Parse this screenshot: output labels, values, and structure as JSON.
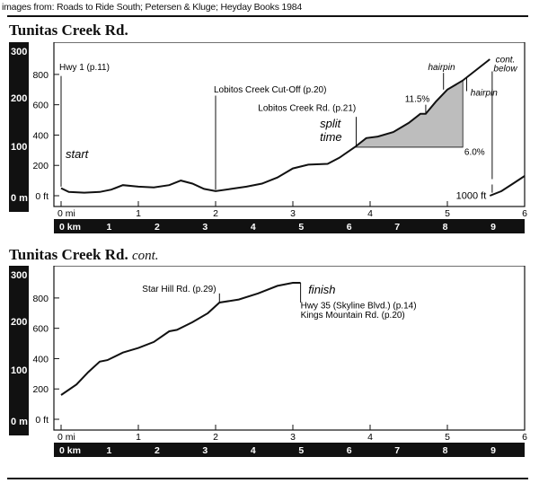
{
  "credit": "images from: Roads to Ride South; Petersen & Kluge; Heyday Books 1984",
  "charts": [
    {
      "title": "Tunitas Creek Rd.",
      "title_suffix": "",
      "feet_ticks": [
        "800",
        "600",
        "400",
        "200",
        "0 ft"
      ],
      "meter_ticks": [
        "300",
        "200",
        "100",
        "0 m"
      ],
      "mile_ticks": [
        "0 mi",
        "1",
        "2",
        "3",
        "4",
        "5",
        "6"
      ],
      "km_ticks": [
        "0 km",
        "1",
        "2",
        "3",
        "4",
        "5",
        "6",
        "7",
        "8",
        "9"
      ],
      "annotations": {
        "hwy1": "Hwy 1 (p.11)",
        "lobitos_cutoff": "Lobitos Creek Cut-Off (p.20)",
        "lobitos_rd": "Lobitos Creek Rd. (p.21)",
        "start": "start",
        "split_time": "split time",
        "hairpin1": "hairpin",
        "hairpin2": "hairpin",
        "grade_steep": "11.5%",
        "grade_avg": "6.0%",
        "cont_below": "cont. below",
        "offset_label": "1000 ft"
      }
    },
    {
      "title": "Tunitas Creek Rd.",
      "title_suffix": "cont.",
      "feet_ticks": [
        "800",
        "600",
        "400",
        "200",
        "0 ft"
      ],
      "meter_ticks": [
        "300",
        "200",
        "100",
        "0 m"
      ],
      "mile_ticks": [
        "0 mi",
        "1",
        "2",
        "3",
        "4",
        "5",
        "6"
      ],
      "km_ticks": [
        "0 km",
        "1",
        "2",
        "3",
        "4",
        "5",
        "6",
        "7",
        "8",
        "9"
      ],
      "annotations": {
        "star_hill": "Star Hill Rd. (p.29)",
        "finish": "finish",
        "hwy35": "Hwy 35 (Skyline Blvd.) (p.14)",
        "kings_mtn": "Kings Mountain Rd. (p.20)"
      }
    }
  ],
  "chart_data": [
    {
      "type": "line",
      "title": "Tunitas Creek Rd.",
      "xlabel": "mi",
      "ylabel": "ft",
      "xlim": [
        0,
        6
      ],
      "ylim": [
        0,
        900
      ],
      "grid": false,
      "series": [
        {
          "x": [
            0,
            0.1,
            0.3,
            0.5,
            0.65,
            0.8,
            1.0,
            1.2,
            1.4,
            1.55,
            1.7,
            1.85,
            2.0,
            2.2,
            2.4,
            2.6,
            2.8,
            3.0,
            3.2,
            3.45,
            3.6,
            3.8,
            3.95,
            4.1,
            4.3,
            4.5,
            4.65,
            4.72,
            4.85,
            5.0,
            5.2,
            5.4,
            5.55
          ],
          "y": [
            50,
            25,
            20,
            25,
            40,
            70,
            60,
            55,
            70,
            100,
            80,
            45,
            30,
            45,
            60,
            80,
            120,
            180,
            205,
            210,
            250,
            320,
            380,
            390,
            420,
            480,
            540,
            540,
            620,
            700,
            760,
            840,
            900
          ]
        },
        {
          "name": "cont. below",
          "x": [
            5.55,
            5.7,
            5.85,
            6.0
          ],
          "y": [
            1000,
            1030,
            1080,
            1130
          ]
        }
      ],
      "shaded_region": {
        "x": [
          3.8,
          5.2
        ]
      },
      "distance_markers_mi": {
        "hwy1": 0,
        "lobitos_cutoff": 2.0,
        "lobitos_rd": 3.82
      }
    },
    {
      "type": "line",
      "title": "Tunitas Creek Rd. cont.",
      "xlabel": "mi",
      "ylabel": "ft",
      "xlim": [
        0,
        6
      ],
      "ylim": [
        0,
        900
      ],
      "grid": false,
      "series": [
        {
          "x": [
            0,
            0.2,
            0.35,
            0.5,
            0.6,
            0.8,
            1.0,
            1.2,
            1.4,
            1.5,
            1.7,
            1.9,
            2.05,
            2.3,
            2.55,
            2.8,
            3.0,
            3.1
          ],
          "y": [
            160,
            230,
            310,
            380,
            390,
            440,
            470,
            510,
            580,
            590,
            640,
            700,
            770,
            790,
            830,
            880,
            900,
            900
          ]
        }
      ],
      "distance_markers_mi": {
        "star_hill": 2.0,
        "finish": 3.1
      }
    }
  ]
}
